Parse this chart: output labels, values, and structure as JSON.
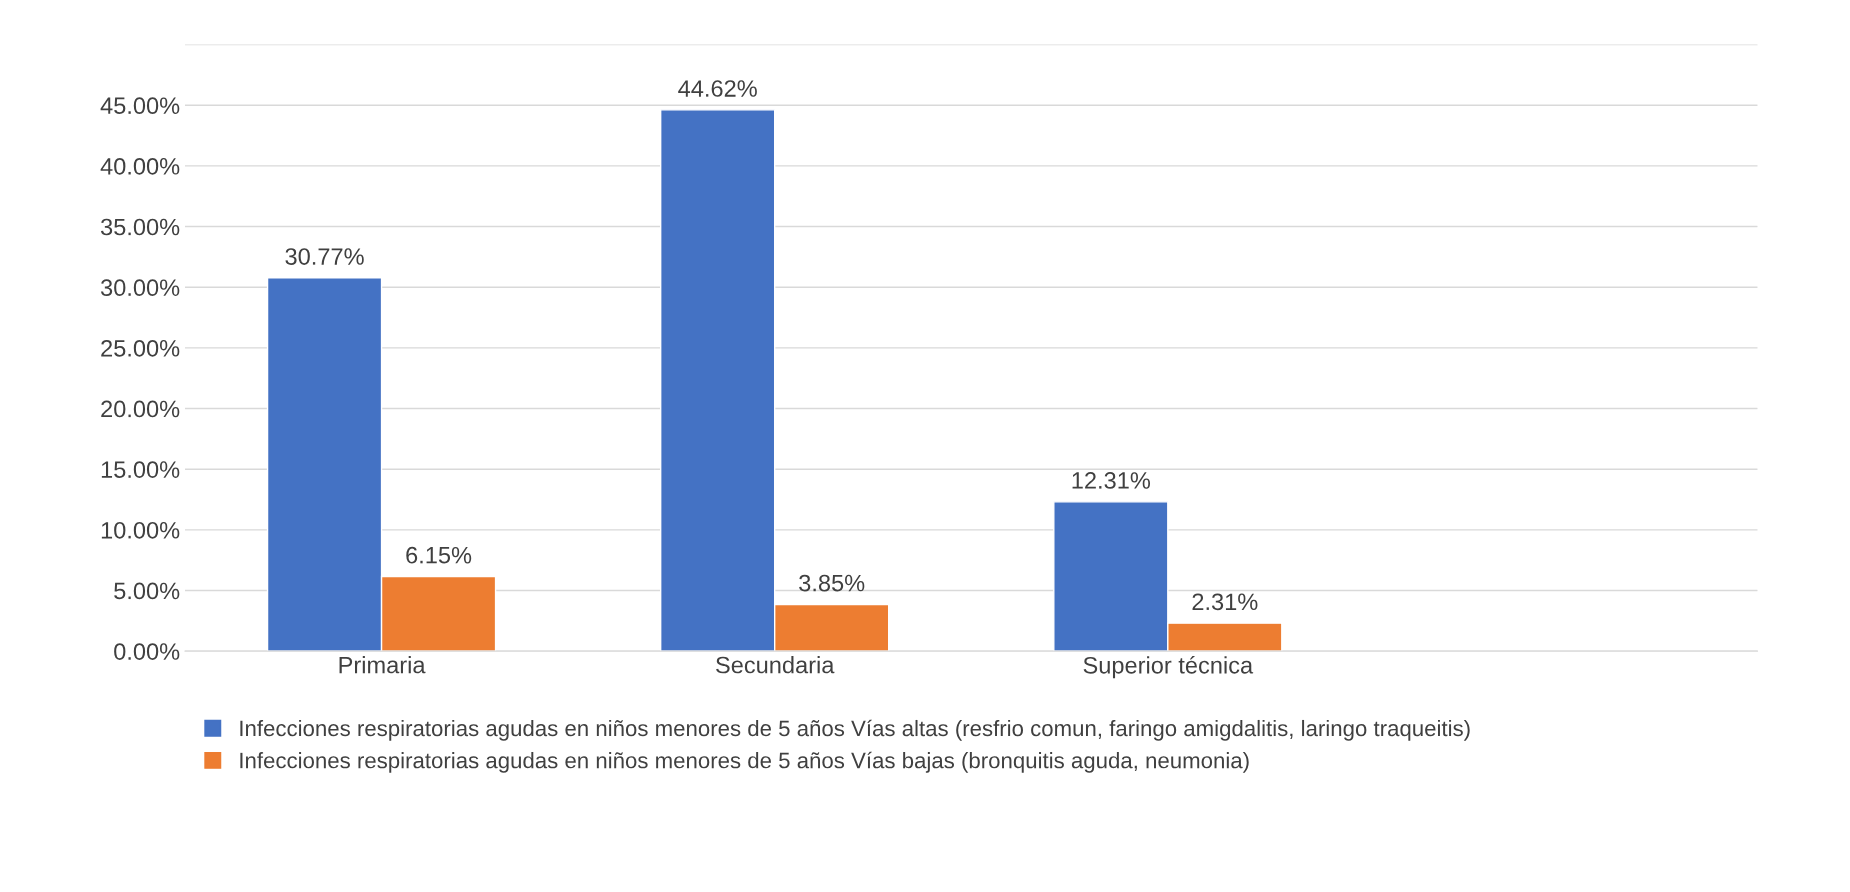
{
  "chart_data": {
    "type": "bar",
    "categories": [
      "Primaria",
      "Secundaria",
      "Superior técnica",
      null
    ],
    "series": [
      {
        "name": "Infecciones respiratorias agudas en niños menores de 5 años Vías altas (resfrio comun, faringo amigdalitis, laringo traqueitis)",
        "color": "#4472c4",
        "values": [
          30.77,
          44.62,
          12.31,
          null
        ],
        "value_labels": [
          "30.77%",
          "44.62%",
          "12.31%",
          null
        ]
      },
      {
        "name": "Infecciones respiratorias agudas en niños menores de 5 años Vías bajas (bronquitis aguda, neumonia)",
        "color": "#ed7d31",
        "values": [
          6.15,
          3.85,
          2.31,
          null
        ],
        "value_labels": [
          "6.15%",
          "3.85%",
          "2.31%",
          null
        ]
      }
    ],
    "ylim": [
      0,
      50
    ],
    "yticks": [
      {
        "value": 0,
        "label": "0.00%"
      },
      {
        "value": 5,
        "label": "5.00%"
      },
      {
        "value": 10,
        "label": "10.00%"
      },
      {
        "value": 15,
        "label": "15.00%"
      },
      {
        "value": 20,
        "label": "20.00%"
      },
      {
        "value": 25,
        "label": "25.00%"
      },
      {
        "value": 30,
        "label": "30.00%"
      },
      {
        "value": 35,
        "label": "35.00%"
      },
      {
        "value": 40,
        "label": "40.00%"
      },
      {
        "value": 45,
        "label": "45.00%"
      },
      {
        "value": 50,
        "label": null
      }
    ],
    "grid": "y",
    "legend": "bottom"
  }
}
